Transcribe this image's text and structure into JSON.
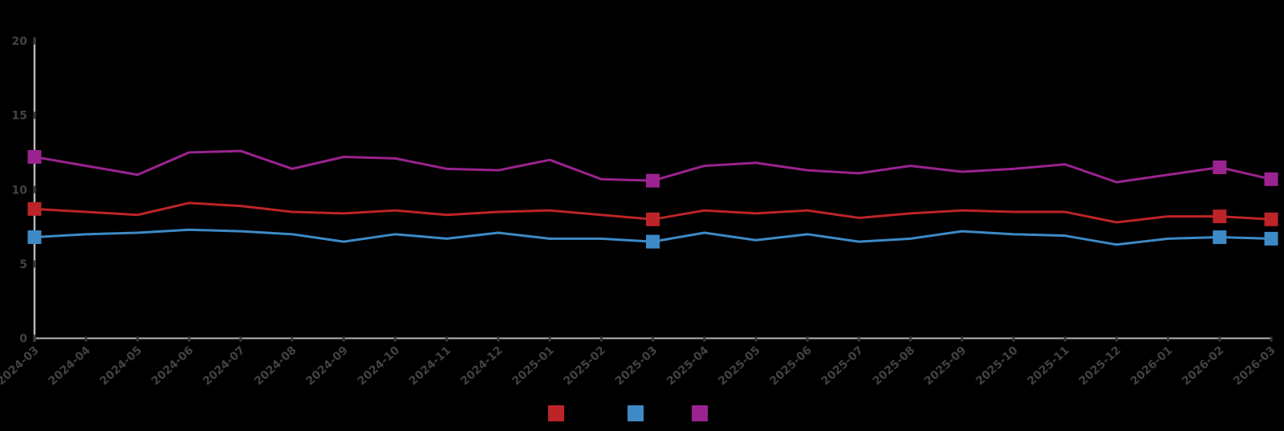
{
  "chart_data": {
    "type": "line",
    "title": "",
    "xlabel": "",
    "ylabel": "",
    "x": [
      "2024-03",
      "2024-04",
      "2024-05",
      "2024-06",
      "2024-07",
      "2024-08",
      "2024-09",
      "2024-10",
      "2024-11",
      "2024-12",
      "2025-01",
      "2025-02",
      "2025-03",
      "2025-04",
      "2025-05",
      "2025-06",
      "2025-07",
      "2025-08",
      "2025-09",
      "2025-10",
      "2025-11",
      "2025-12",
      "2026-01",
      "2026-02",
      "2026-03"
    ],
    "series": [
      {
        "name": "series-red",
        "legend_label": "",
        "color": "#bd2428",
        "values": [
          8.7,
          8.5,
          8.3,
          9.1,
          8.9,
          8.5,
          8.4,
          8.6,
          8.3,
          8.5,
          8.6,
          8.3,
          8.0,
          8.6,
          8.4,
          8.6,
          8.1,
          8.4,
          8.6,
          8.5,
          8.5,
          7.8,
          8.2,
          8.2,
          8.0
        ]
      },
      {
        "name": "series-blue",
        "legend_label": "",
        "color": "#3d8ac6",
        "values": [
          6.8,
          7.0,
          7.1,
          7.3,
          7.2,
          7.0,
          6.5,
          7.0,
          6.7,
          7.1,
          6.7,
          6.7,
          6.5,
          7.1,
          6.6,
          7.0,
          6.5,
          6.7,
          7.2,
          7.0,
          6.9,
          6.3,
          6.7,
          6.8,
          6.7
        ]
      },
      {
        "name": "series-magenta",
        "legend_label": "",
        "color": "#9b2390",
        "values": [
          12.2,
          11.6,
          11.0,
          12.5,
          12.6,
          11.4,
          12.2,
          12.1,
          11.4,
          11.3,
          12.0,
          10.7,
          10.6,
          11.6,
          11.8,
          11.3,
          11.1,
          11.6,
          11.2,
          11.4,
          11.7,
          10.5,
          11.0,
          11.5,
          10.7
        ]
      }
    ],
    "marker_indices": [
      0,
      12,
      23,
      24
    ],
    "ylim": [
      0,
      20
    ],
    "yticks": [
      0,
      5,
      10,
      15,
      20
    ],
    "grid": false,
    "legend_position": "bottom",
    "colors": {
      "axis": "#b5b5b5",
      "tick_mark": "#3a3a3a",
      "tick_text": "#424242",
      "background": "#000000"
    }
  }
}
